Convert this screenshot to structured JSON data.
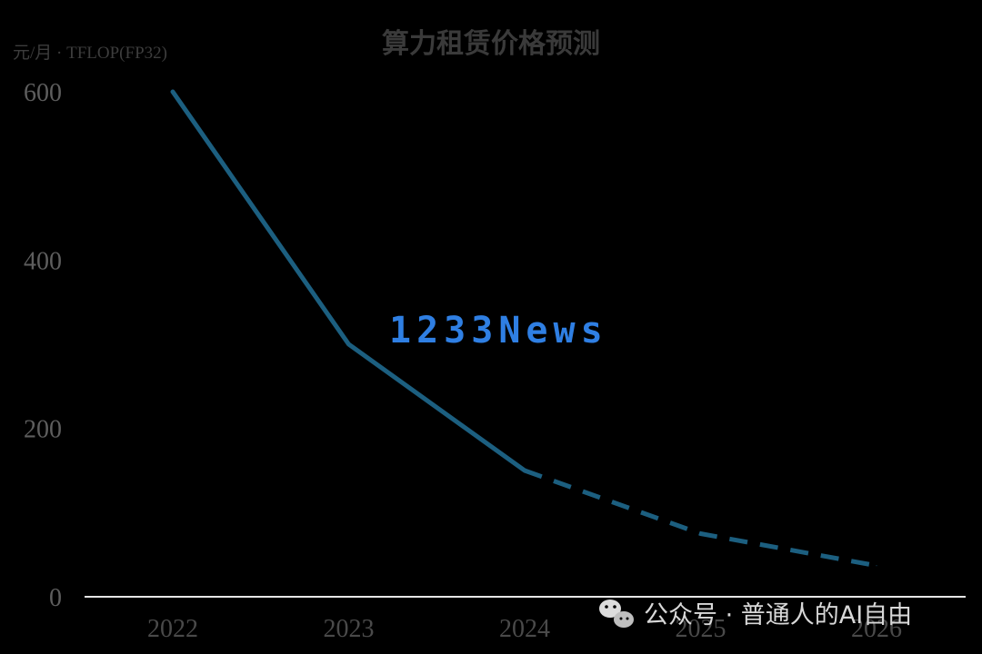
{
  "chart_data": {
    "type": "line",
    "title": "算力租赁价格预测",
    "ylabel": "元/月 · TFLOP(FP32)",
    "xlabel": "",
    "categories": [
      "2022",
      "2023",
      "2024",
      "2025",
      "2026"
    ],
    "y_ticks": [
      "0",
      "200",
      "400",
      "600"
    ],
    "ylim": [
      0,
      600
    ],
    "series": [
      {
        "values": [
          600,
          300,
          150,
          75,
          37
        ],
        "actual_range": [
          "2022",
          "2024"
        ],
        "forecast_range": [
          "2024",
          "2026"
        ],
        "color": "#1c5f80"
      }
    ],
    "grid": false,
    "legend": "none"
  },
  "watermark": {
    "wordmark": "1233News",
    "source": "公众号 · 普通人的AI自由",
    "icon": "wechat-icon"
  },
  "colors": {
    "background": "#000000",
    "line": "#1c5f80",
    "axis": "#e6e6e6"
  }
}
